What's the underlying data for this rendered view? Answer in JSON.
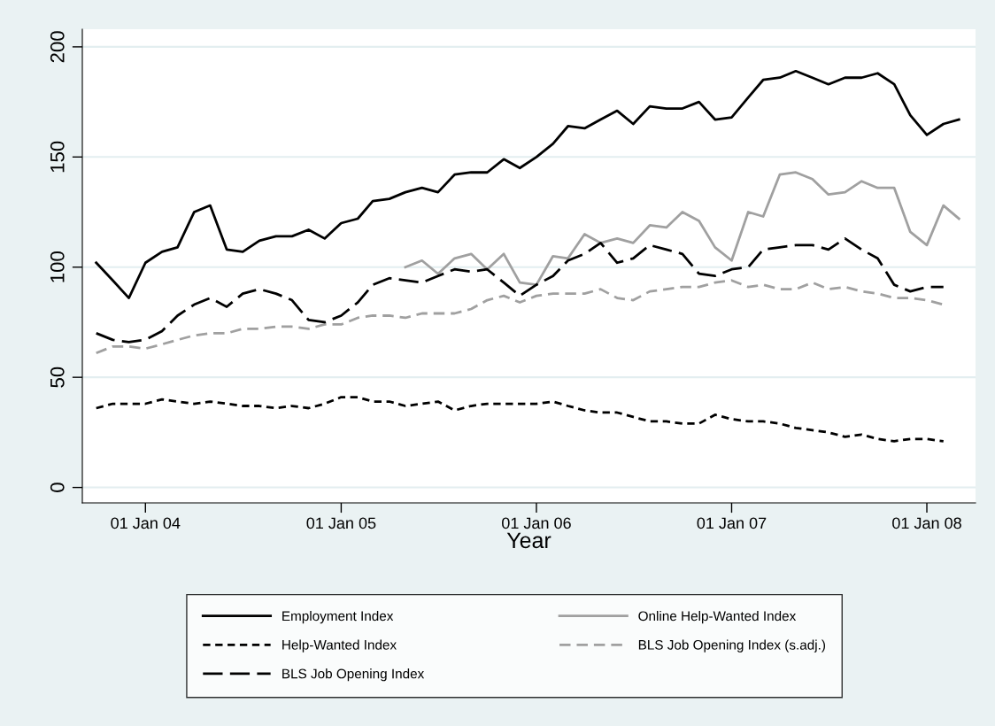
{
  "chart_data": {
    "type": "line",
    "xlabel": "Year",
    "x": [
      "2003-10",
      "2003-11",
      "2003-12",
      "2004-01",
      "2004-02",
      "2004-03",
      "2004-04",
      "2004-05",
      "2004-06",
      "2004-07",
      "2004-08",
      "2004-09",
      "2004-10",
      "2004-11",
      "2004-12",
      "2005-01",
      "2005-02",
      "2005-03",
      "2005-04",
      "2005-05",
      "2005-06",
      "2005-07",
      "2005-08",
      "2005-09",
      "2005-10",
      "2005-11",
      "2005-12",
      "2006-01",
      "2006-02",
      "2006-03",
      "2006-04",
      "2006-05",
      "2006-06",
      "2006-07",
      "2006-08",
      "2006-09",
      "2006-10",
      "2006-11",
      "2006-12",
      "2007-01",
      "2007-02",
      "2007-03",
      "2007-04",
      "2007-05",
      "2007-06",
      "2007-07",
      "2007-08",
      "2007-09",
      "2007-10",
      "2007-11",
      "2007-12",
      "2008-01",
      "2008-02",
      "2008-03"
    ],
    "series": [
      {
        "name": "Employment Index",
        "color": "#000000",
        "line_style": "solid",
        "values": [
          102,
          94,
          86,
          102,
          107,
          109,
          125,
          128,
          108,
          107,
          112,
          114,
          114,
          117,
          113,
          120,
          122,
          130,
          131,
          134,
          136,
          134,
          142,
          143,
          143,
          149,
          145,
          150,
          156,
          164,
          163,
          167,
          171,
          165,
          173,
          172,
          172,
          175,
          167,
          168,
          177,
          185,
          186,
          189,
          186,
          183,
          186,
          186,
          188,
          183,
          169,
          160,
          165,
          167
        ]
      },
      {
        "name": "Online Help-Wanted Index",
        "color": "#a0a0a0",
        "line_style": "solid",
        "values": [
          null,
          null,
          null,
          null,
          null,
          null,
          null,
          null,
          null,
          null,
          null,
          null,
          null,
          null,
          null,
          null,
          null,
          null,
          null,
          100,
          103,
          97,
          104,
          106,
          99,
          106,
          93,
          92,
          105,
          104,
          115,
          111,
          113,
          111,
          119,
          118,
          125,
          121,
          109,
          103,
          125,
          123,
          142,
          143,
          140,
          133,
          134,
          139,
          136,
          136,
          116,
          110,
          128,
          122
        ]
      },
      {
        "name": "Help-Wanted Index",
        "color": "#000000",
        "line_style": "dashed",
        "values": [
          36,
          38,
          38,
          38,
          40,
          39,
          38,
          39,
          38,
          37,
          37,
          36,
          37,
          36,
          38,
          41,
          41,
          39,
          39,
          37,
          38,
          39,
          35,
          37,
          38,
          38,
          38,
          38,
          39,
          37,
          35,
          34,
          34,
          32,
          30,
          30,
          29,
          29,
          33,
          31,
          30,
          30,
          29,
          27,
          26,
          25,
          23,
          24,
          22,
          21,
          22,
          22,
          21,
          null
        ]
      },
      {
        "name": "BLS Job Opening Index (s.adj.)",
        "color": "#a0a0a0",
        "line_style": "dashed",
        "values": [
          61,
          64,
          64,
          63,
          65,
          67,
          69,
          70,
          70,
          72,
          72,
          73,
          73,
          72,
          74,
          74,
          77,
          78,
          78,
          77,
          79,
          79,
          79,
          81,
          85,
          87,
          84,
          87,
          88,
          88,
          88,
          90,
          86,
          85,
          89,
          90,
          91,
          91,
          93,
          94,
          91,
          92,
          90,
          90,
          93,
          90,
          91,
          89,
          88,
          86,
          86,
          85,
          83,
          null
        ]
      },
      {
        "name": "BLS Job Opening Index",
        "color": "#000000",
        "line_style": "dashed",
        "values": [
          70,
          67,
          66,
          67,
          71,
          78,
          83,
          86,
          82,
          88,
          90,
          88,
          85,
          76,
          75,
          78,
          84,
          92,
          95,
          94,
          93,
          96,
          99,
          98,
          99,
          93,
          87,
          92,
          96,
          103,
          106,
          111,
          102,
          104,
          110,
          108,
          106,
          97,
          96,
          99,
          100,
          108,
          109,
          110,
          110,
          108,
          113,
          108,
          104,
          92,
          89,
          91,
          91,
          null
        ]
      }
    ],
    "xlim": [
      "2003-09-05",
      "2008-04-01"
    ],
    "xticks": [
      {
        "value": "2004-01-01",
        "label": "01 Jan 04"
      },
      {
        "value": "2005-01-01",
        "label": "01 Jan 05"
      },
      {
        "value": "2006-01-01",
        "label": "01 Jan 06"
      },
      {
        "value": "2007-01-01",
        "label": "01 Jan 07"
      },
      {
        "value": "2008-01-01",
        "label": "01 Jan 08"
      }
    ],
    "ylim": [
      -7,
      208
    ],
    "yticks": [
      0,
      50,
      100,
      150,
      200
    ],
    "grid": "y",
    "legend": "bottom",
    "marker": "none"
  }
}
